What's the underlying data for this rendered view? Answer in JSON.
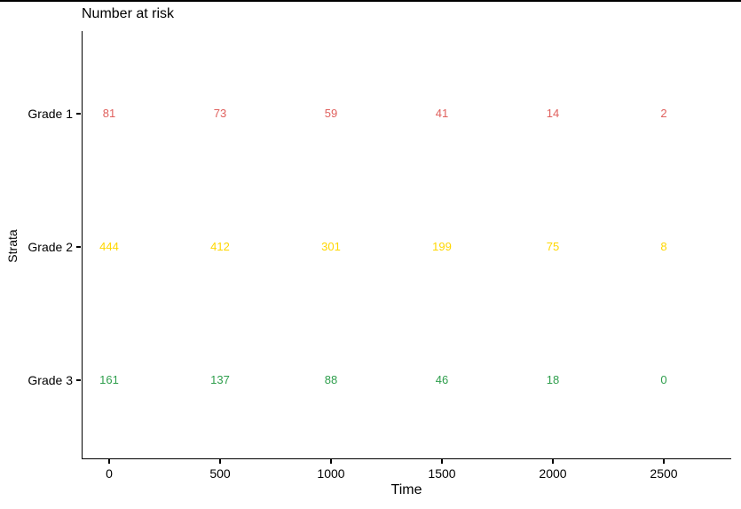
{
  "page": {
    "background": "#FFFFFF",
    "top_border_color": "#000000"
  },
  "chart_data": {
    "type": "table",
    "title": "Number at risk",
    "xlabel": "Time",
    "ylabel": "Strata",
    "xlim": [
      0,
      2500
    ],
    "x_ticks": [
      0,
      500,
      1000,
      1500,
      2000,
      2500
    ],
    "grid": false,
    "legend": false,
    "axis_color": "#000000",
    "text_color": "#000000",
    "rows": [
      {
        "label": "Grade 1",
        "color": "#E0605D",
        "values": [
          81,
          73,
          59,
          41,
          14,
          2
        ]
      },
      {
        "label": "Grade 2",
        "color": "#FFD700",
        "values": [
          444,
          412,
          301,
          199,
          75,
          8
        ]
      },
      {
        "label": "Grade 3",
        "color": "#2E9E4C",
        "values": [
          161,
          137,
          88,
          46,
          18,
          0
        ]
      }
    ]
  }
}
